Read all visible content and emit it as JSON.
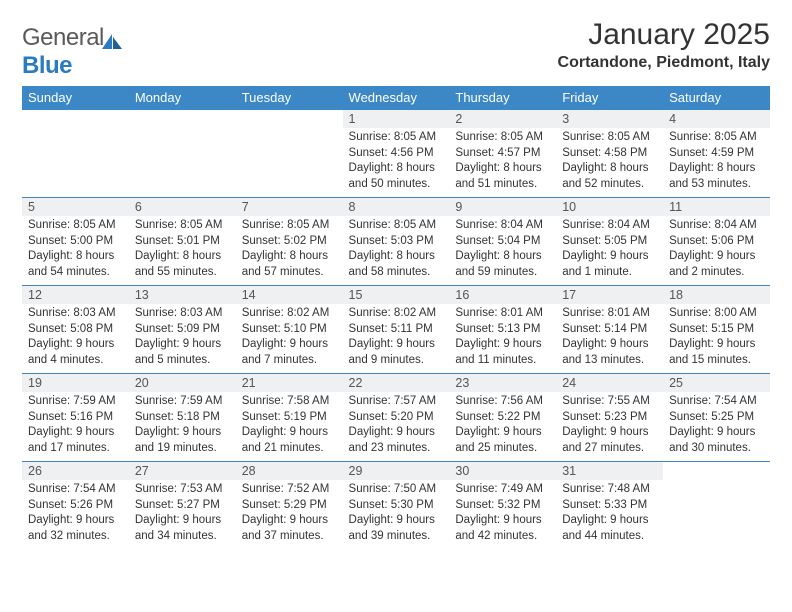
{
  "brand": {
    "part1": "General",
    "part2": "Blue"
  },
  "title": "January 2025",
  "location": "Cortandone, Piedmont, Italy",
  "colors": {
    "header_bg": "#3c88c6",
    "header_text": "#ffffff",
    "daynum_bg": "#eef0f1",
    "row_border": "#3c88c6",
    "text": "#333333",
    "logo_gray": "#5a5a5a",
    "logo_blue": "#2b7bbf"
  },
  "weekdays": [
    "Sunday",
    "Monday",
    "Tuesday",
    "Wednesday",
    "Thursday",
    "Friday",
    "Saturday"
  ],
  "weeks": [
    [
      null,
      null,
      null,
      {
        "n": "1",
        "sr": "8:05 AM",
        "ss": "4:56 PM",
        "dl": "8 hours and 50 minutes."
      },
      {
        "n": "2",
        "sr": "8:05 AM",
        "ss": "4:57 PM",
        "dl": "8 hours and 51 minutes."
      },
      {
        "n": "3",
        "sr": "8:05 AM",
        "ss": "4:58 PM",
        "dl": "8 hours and 52 minutes."
      },
      {
        "n": "4",
        "sr": "8:05 AM",
        "ss": "4:59 PM",
        "dl": "8 hours and 53 minutes."
      }
    ],
    [
      {
        "n": "5",
        "sr": "8:05 AM",
        "ss": "5:00 PM",
        "dl": "8 hours and 54 minutes."
      },
      {
        "n": "6",
        "sr": "8:05 AM",
        "ss": "5:01 PM",
        "dl": "8 hours and 55 minutes."
      },
      {
        "n": "7",
        "sr": "8:05 AM",
        "ss": "5:02 PM",
        "dl": "8 hours and 57 minutes."
      },
      {
        "n": "8",
        "sr": "8:05 AM",
        "ss": "5:03 PM",
        "dl": "8 hours and 58 minutes."
      },
      {
        "n": "9",
        "sr": "8:04 AM",
        "ss": "5:04 PM",
        "dl": "8 hours and 59 minutes."
      },
      {
        "n": "10",
        "sr": "8:04 AM",
        "ss": "5:05 PM",
        "dl": "9 hours and 1 minute."
      },
      {
        "n": "11",
        "sr": "8:04 AM",
        "ss": "5:06 PM",
        "dl": "9 hours and 2 minutes."
      }
    ],
    [
      {
        "n": "12",
        "sr": "8:03 AM",
        "ss": "5:08 PM",
        "dl": "9 hours and 4 minutes."
      },
      {
        "n": "13",
        "sr": "8:03 AM",
        "ss": "5:09 PM",
        "dl": "9 hours and 5 minutes."
      },
      {
        "n": "14",
        "sr": "8:02 AM",
        "ss": "5:10 PM",
        "dl": "9 hours and 7 minutes."
      },
      {
        "n": "15",
        "sr": "8:02 AM",
        "ss": "5:11 PM",
        "dl": "9 hours and 9 minutes."
      },
      {
        "n": "16",
        "sr": "8:01 AM",
        "ss": "5:13 PM",
        "dl": "9 hours and 11 minutes."
      },
      {
        "n": "17",
        "sr": "8:01 AM",
        "ss": "5:14 PM",
        "dl": "9 hours and 13 minutes."
      },
      {
        "n": "18",
        "sr": "8:00 AM",
        "ss": "5:15 PM",
        "dl": "9 hours and 15 minutes."
      }
    ],
    [
      {
        "n": "19",
        "sr": "7:59 AM",
        "ss": "5:16 PM",
        "dl": "9 hours and 17 minutes."
      },
      {
        "n": "20",
        "sr": "7:59 AM",
        "ss": "5:18 PM",
        "dl": "9 hours and 19 minutes."
      },
      {
        "n": "21",
        "sr": "7:58 AM",
        "ss": "5:19 PM",
        "dl": "9 hours and 21 minutes."
      },
      {
        "n": "22",
        "sr": "7:57 AM",
        "ss": "5:20 PM",
        "dl": "9 hours and 23 minutes."
      },
      {
        "n": "23",
        "sr": "7:56 AM",
        "ss": "5:22 PM",
        "dl": "9 hours and 25 minutes."
      },
      {
        "n": "24",
        "sr": "7:55 AM",
        "ss": "5:23 PM",
        "dl": "9 hours and 27 minutes."
      },
      {
        "n": "25",
        "sr": "7:54 AM",
        "ss": "5:25 PM",
        "dl": "9 hours and 30 minutes."
      }
    ],
    [
      {
        "n": "26",
        "sr": "7:54 AM",
        "ss": "5:26 PM",
        "dl": "9 hours and 32 minutes."
      },
      {
        "n": "27",
        "sr": "7:53 AM",
        "ss": "5:27 PM",
        "dl": "9 hours and 34 minutes."
      },
      {
        "n": "28",
        "sr": "7:52 AM",
        "ss": "5:29 PM",
        "dl": "9 hours and 37 minutes."
      },
      {
        "n": "29",
        "sr": "7:50 AM",
        "ss": "5:30 PM",
        "dl": "9 hours and 39 minutes."
      },
      {
        "n": "30",
        "sr": "7:49 AM",
        "ss": "5:32 PM",
        "dl": "9 hours and 42 minutes."
      },
      {
        "n": "31",
        "sr": "7:48 AM",
        "ss": "5:33 PM",
        "dl": "9 hours and 44 minutes."
      },
      null
    ]
  ],
  "labels": {
    "sunrise": "Sunrise:",
    "sunset": "Sunset:",
    "daylight": "Daylight:"
  }
}
